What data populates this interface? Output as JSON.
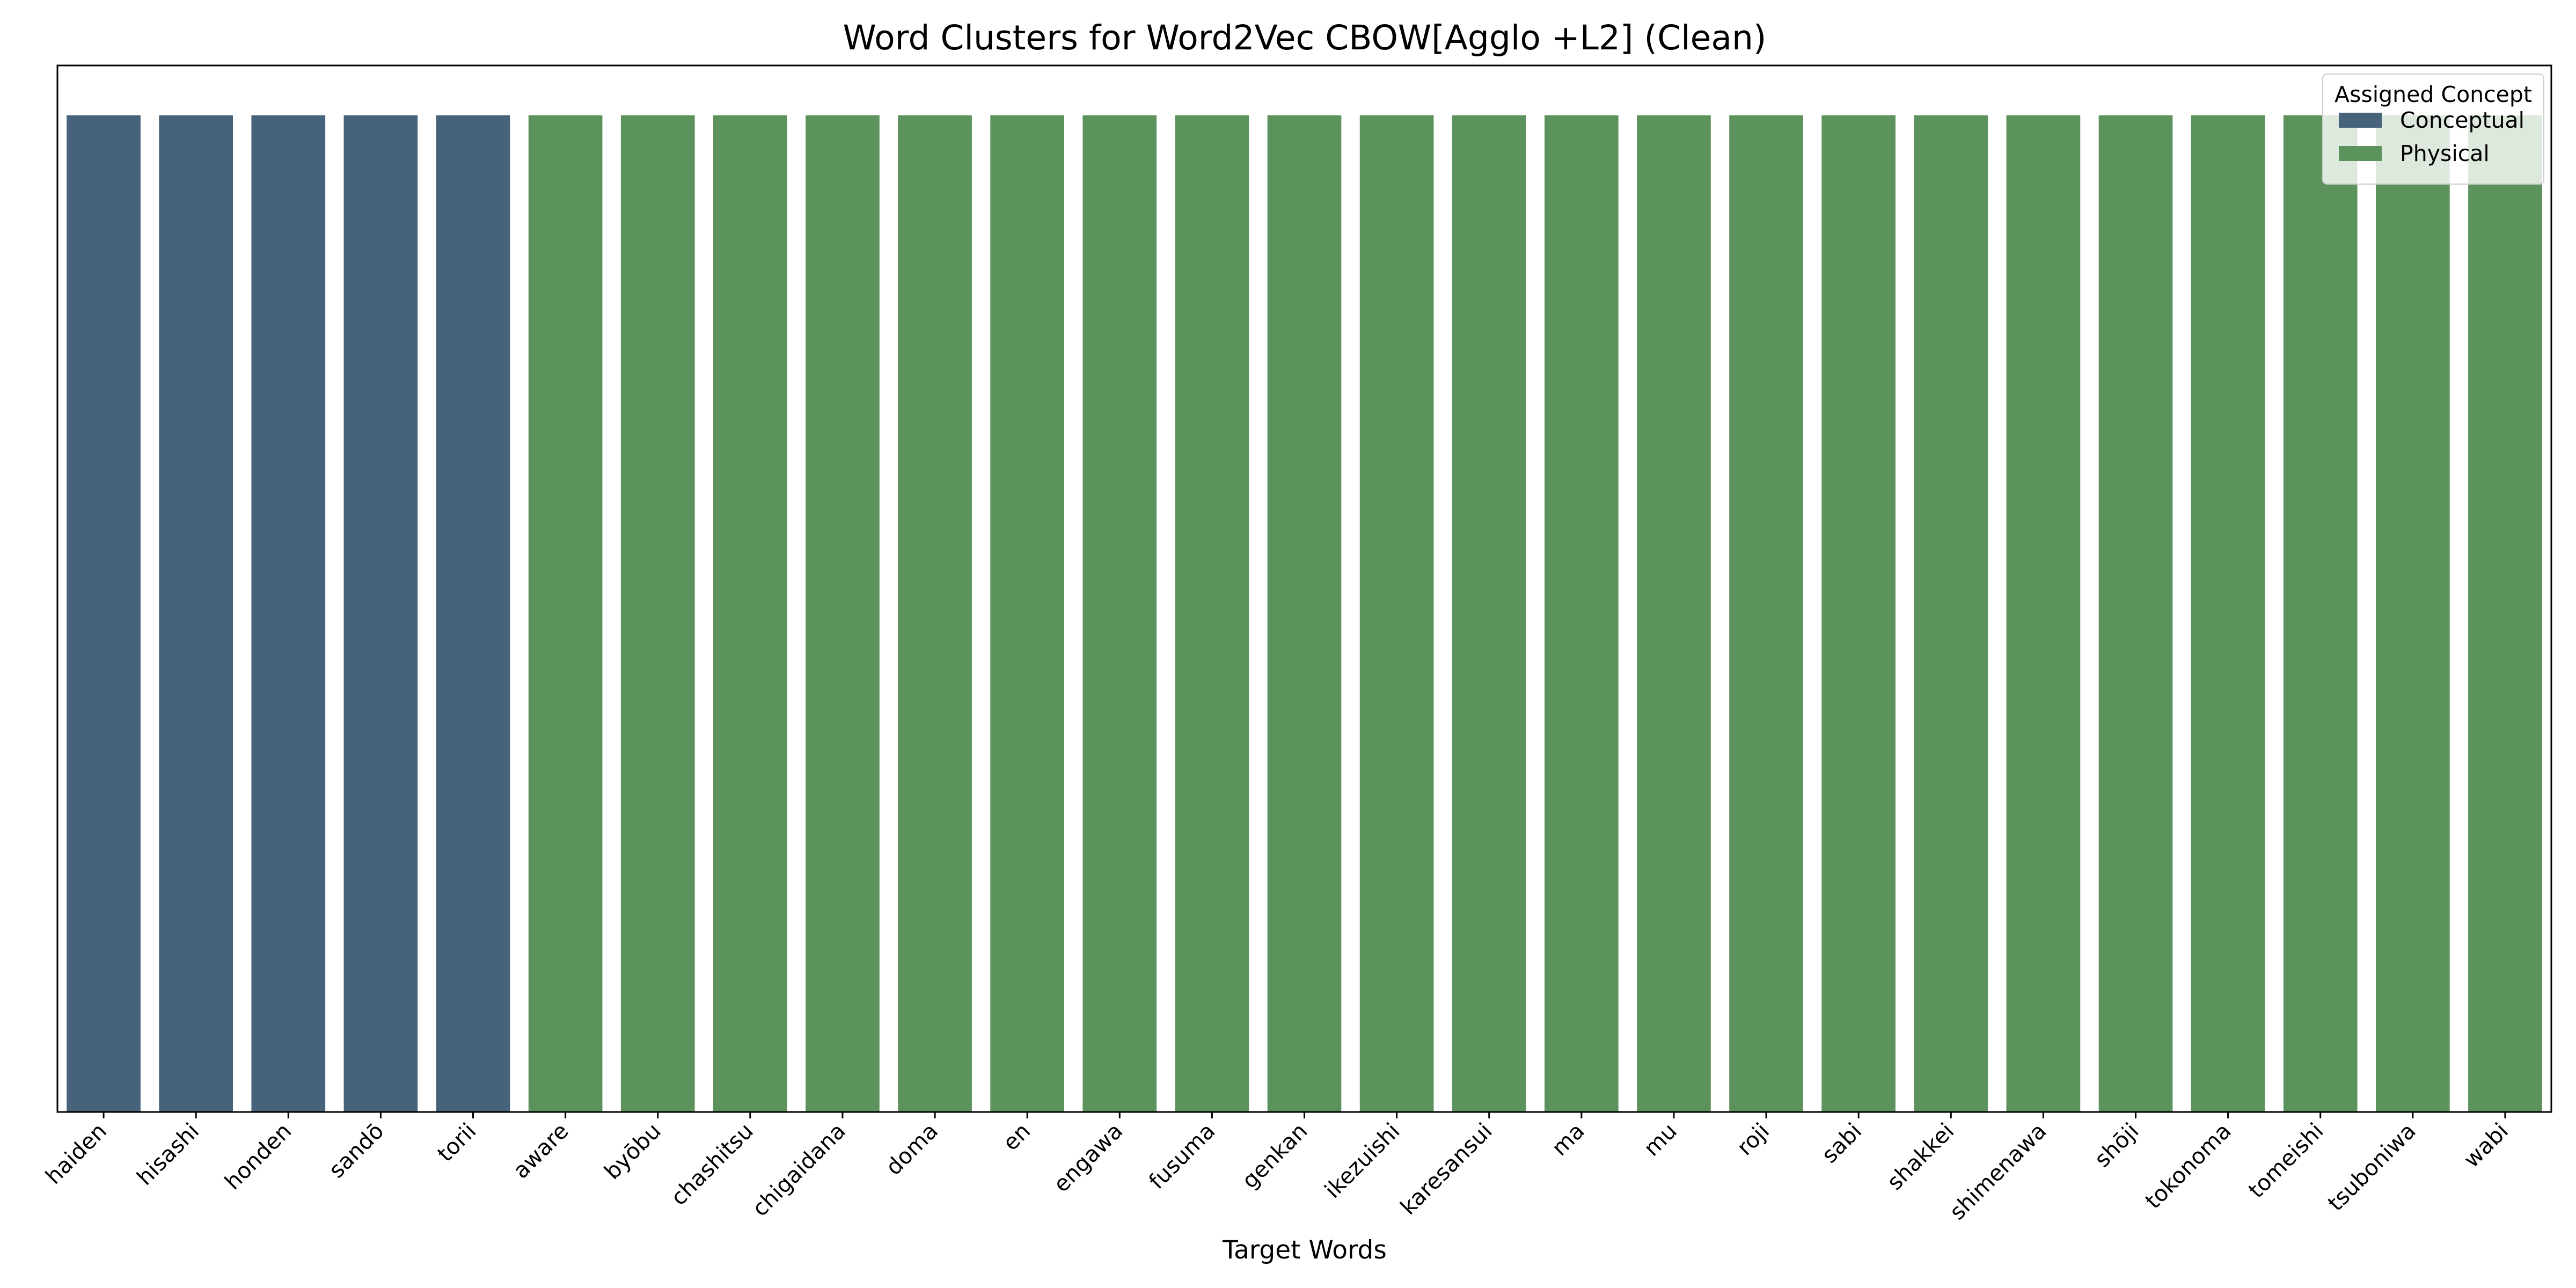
{
  "chart_data": {
    "type": "bar",
    "title": "Word Clusters for Word2Vec CBOW[Agglo +L2] (Clean)",
    "xlabel": "Target Words",
    "ylabel": "",
    "categories": [
      "haiden",
      "hisashi",
      "honden",
      "sandō",
      "torii",
      "aware",
      "byōbu",
      "chashitsu",
      "chigaidana",
      "doma",
      "en",
      "engawa",
      "fusuma",
      "genkan",
      "ikezuishi",
      "karesansui",
      "ma",
      "mu",
      "roji",
      "sabi",
      "shakkei",
      "shimenawa",
      "shōji",
      "tokonoma",
      "tomeishi",
      "tsuboniwa",
      "wabi"
    ],
    "values": [
      1,
      1,
      1,
      1,
      1,
      1,
      1,
      1,
      1,
      1,
      1,
      1,
      1,
      1,
      1,
      1,
      1,
      1,
      1,
      1,
      1,
      1,
      1,
      1,
      1,
      1,
      1
    ],
    "assigned": [
      "Conceptual",
      "Conceptual",
      "Conceptual",
      "Conceptual",
      "Conceptual",
      "Physical",
      "Physical",
      "Physical",
      "Physical",
      "Physical",
      "Physical",
      "Physical",
      "Physical",
      "Physical",
      "Physical",
      "Physical",
      "Physical",
      "Physical",
      "Physical",
      "Physical",
      "Physical",
      "Physical",
      "Physical",
      "Physical",
      "Physical",
      "Physical",
      "Physical"
    ],
    "ylim": [
      0,
      1.05
    ],
    "yticks_visible": false,
    "grid": false,
    "legend": {
      "title": "Assigned Concept",
      "placement": "top-right",
      "entries": [
        {
          "name": "Conceptual",
          "color": "#47637b"
        },
        {
          "name": "Physical",
          "color": "#5c935d"
        }
      ]
    }
  }
}
